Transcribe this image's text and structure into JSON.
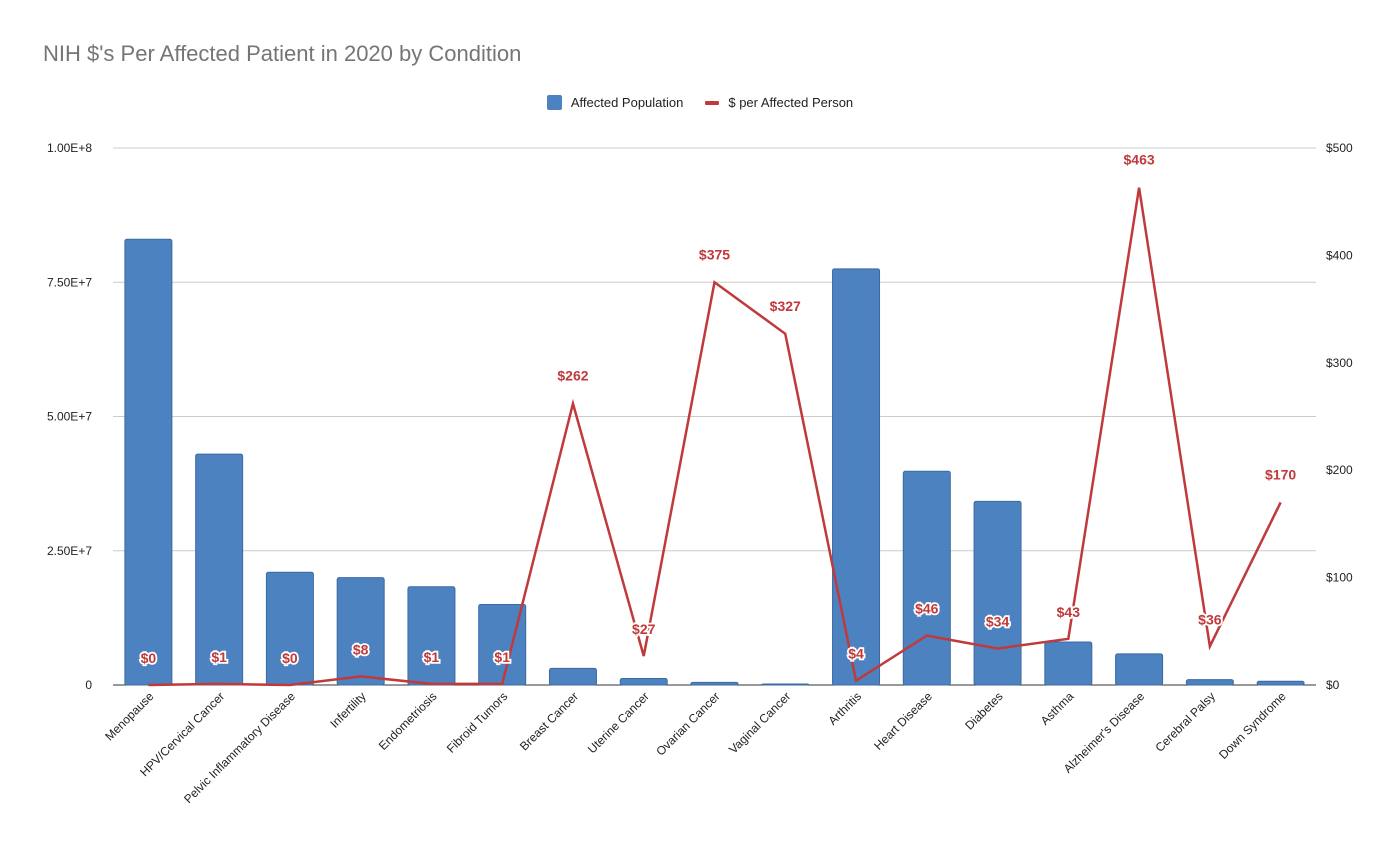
{
  "chart_data": {
    "type": "bar",
    "title": "NIH $'s Per Affected Patient in 2020 by Condition",
    "categories": [
      "Menopause",
      "HPV/Cervical Cancer",
      "Pelvic Inflammatory Disease",
      "Infertility",
      "Endometriosis",
      "Fibroid Tumors",
      "Breast Cancer",
      "Uterine Cancer",
      "Ovarian Cancer",
      "Vaginal Cancer",
      "Arthritis",
      "Heart Disease",
      "Diabetes",
      "Asthma",
      "Alzheimer's Disease",
      "Cerebral Palsy",
      "Down Syndrome"
    ],
    "series": [
      {
        "name": "Affected Population",
        "type": "bar",
        "axis": "left",
        "color": "#4d82c0",
        "values": [
          83000000,
          43000000,
          21000000,
          20000000,
          18300000,
          15000000,
          3100000,
          1200000,
          500000,
          100000,
          77500000,
          39800000,
          34200000,
          8000000,
          5800000,
          1000000,
          700000
        ]
      },
      {
        "name": "$ per Affected Person",
        "type": "line",
        "axis": "right",
        "color": "#c0393b",
        "values": [
          0,
          1,
          0,
          8,
          1,
          1,
          262,
          27,
          375,
          327,
          4,
          46,
          34,
          43,
          463,
          36,
          170
        ],
        "labels": [
          "$0",
          "$1",
          "$0",
          "$8",
          "$1",
          "$1",
          "$262",
          "$27",
          "$375",
          "$327",
          "$4",
          "$46",
          "$34",
          "$43",
          "$463",
          "$36",
          "$170"
        ]
      }
    ],
    "y_left": {
      "ylim": [
        0,
        100000000
      ],
      "ticks": [
        0,
        25000000,
        50000000,
        75000000,
        100000000
      ],
      "tick_labels": [
        "0",
        "2.50E+7",
        "5.00E+7",
        "7.50E+7",
        "1.00E+8"
      ]
    },
    "y_right": {
      "ylim": [
        0,
        500
      ],
      "ticks": [
        0,
        100,
        200,
        300,
        400,
        500
      ],
      "tick_labels": [
        "$0",
        "$100",
        "$200",
        "$300",
        "$400",
        "$500"
      ]
    },
    "xlabel": "",
    "ylabel": "",
    "grid": true,
    "legend_position": "top-center"
  }
}
